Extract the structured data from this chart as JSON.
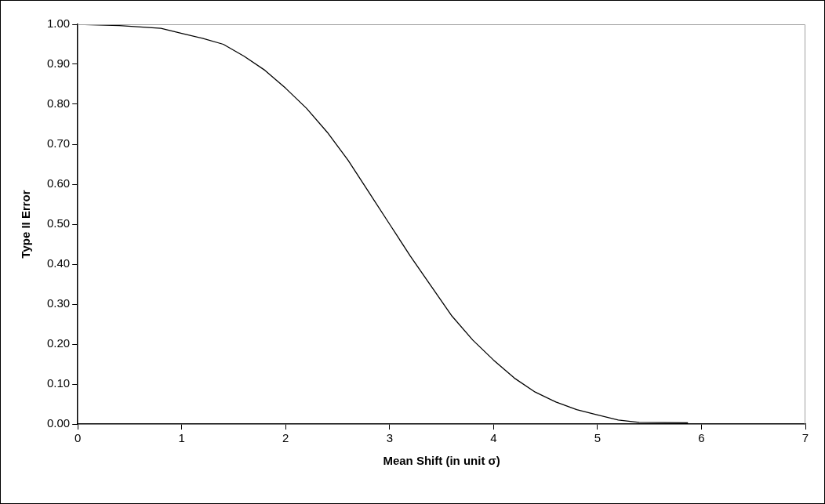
{
  "chart_data": {
    "type": "line",
    "xlabel": "Mean Shift (in unit σ)",
    "ylabel": "Type II Error",
    "x": [
      0,
      0.4,
      0.8,
      1.0,
      1.2,
      1.4,
      1.6,
      1.8,
      2.0,
      2.2,
      2.4,
      2.6,
      2.8,
      3.0,
      3.2,
      3.4,
      3.6,
      3.8,
      4.0,
      4.2,
      4.4,
      4.6,
      4.8,
      5.0,
      5.2,
      5.4,
      5.87
    ],
    "series": [
      {
        "color": "#000000",
        "values": [
          1.0,
          0.997,
          0.99,
          0.977,
          0.965,
          0.95,
          0.92,
          0.885,
          0.84,
          0.79,
          0.73,
          0.66,
          0.58,
          0.5,
          0.42,
          0.345,
          0.27,
          0.21,
          0.16,
          0.115,
          0.08,
          0.055,
          0.036,
          0.023,
          0.01,
          0.004,
          0.003
        ]
      }
    ],
    "xlim": [
      0,
      7
    ],
    "xticks": [
      0,
      1,
      2,
      3,
      4,
      5,
      6,
      7
    ],
    "ylim": [
      0,
      1
    ],
    "yticks": [
      {
        "value": 0,
        "label": "0.00"
      },
      {
        "value": 0.1,
        "label": "0.10"
      },
      {
        "value": 0.2,
        "label": "0.20"
      },
      {
        "value": 0.3,
        "label": "0.30"
      },
      {
        "value": 0.4,
        "label": "0.40"
      },
      {
        "value": 0.5,
        "label": "0.50"
      },
      {
        "value": 0.6,
        "label": "0.60"
      },
      {
        "value": 0.7,
        "label": "0.70"
      },
      {
        "value": 0.8,
        "label": "0.80"
      },
      {
        "value": 0.9,
        "label": "0.90"
      },
      {
        "value": 1,
        "label": "1.00"
      }
    ],
    "grid": false,
    "legend": false,
    "marker": "none",
    "line_style": "solid"
  }
}
